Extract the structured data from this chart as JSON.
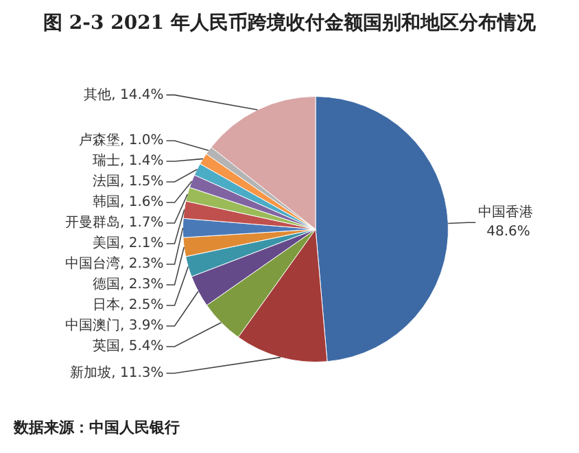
{
  "chart_data": {
    "type": "pie",
    "title": "图 2-3 2021 年人民币跨境收付金额国别和地区分布情况",
    "categories": [
      "中国香港",
      "新加坡",
      "英国",
      "中国澳门",
      "日本",
      "德国",
      "中国台湾",
      "美国",
      "开曼群岛",
      "韩国",
      "法国",
      "瑞士",
      "卢森堡",
      "其他"
    ],
    "values": [
      48.6,
      11.3,
      5.4,
      3.9,
      2.5,
      2.3,
      2.3,
      2.1,
      1.7,
      1.6,
      1.5,
      1.4,
      1.0,
      14.4
    ],
    "value_labels": [
      "48.6%",
      "11.3%",
      "5.4%",
      "3.9%",
      "2.5%",
      "2.3%",
      "2.3%",
      "2.1%",
      "1.7%",
      "1.6%",
      "1.5%",
      "1.4%",
      "1.0%",
      "14.4%"
    ],
    "colors": [
      "#3d6aa5",
      "#a33b38",
      "#7e9c3f",
      "#654a8a",
      "#3b95a8",
      "#e08b34",
      "#4a79b8",
      "#c0504d",
      "#9bbb59",
      "#8064a2",
      "#4bacc6",
      "#f79646",
      "#b4b4b4",
      "#d9a5a5"
    ],
    "legend": false,
    "annotations": [
      "数据来源：中国人民银行"
    ]
  }
}
